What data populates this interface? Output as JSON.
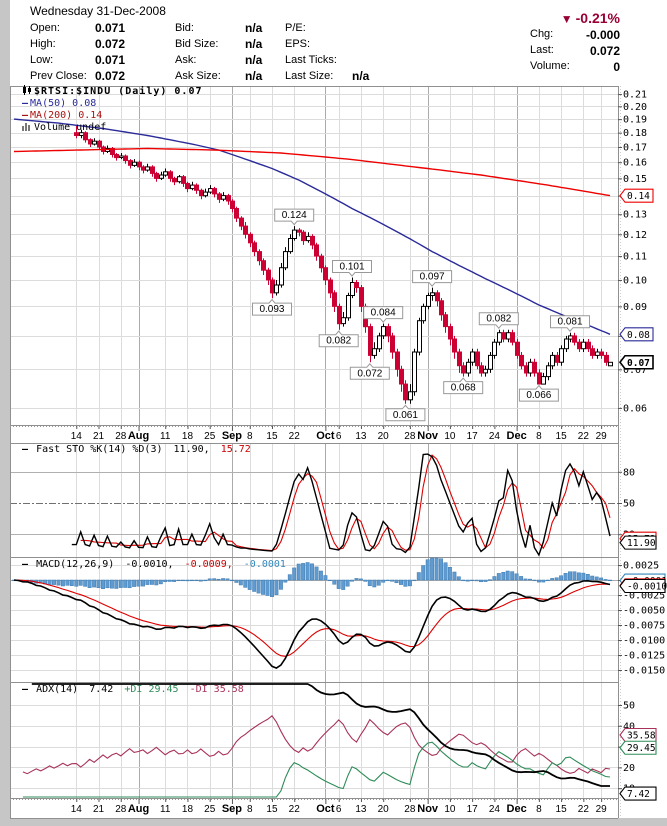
{
  "header": {
    "date_line": "Wednesday  31-Dec-2008",
    "rows_left": [
      {
        "label": "Open:",
        "value": "0.071"
      },
      {
        "label": "High:",
        "value": "0.072"
      },
      {
        "label": "Low:",
        "value": "0.071"
      },
      {
        "label": "Prev Close:",
        "value": "0.072"
      }
    ],
    "rows_mid": [
      {
        "label": "Bid:",
        "value": "n/a"
      },
      {
        "label": "Bid Size:",
        "value": "n/a"
      },
      {
        "label": "Ask:",
        "value": "n/a"
      },
      {
        "label": "Ask Size:",
        "value": "n/a"
      }
    ],
    "rows_right": [
      {
        "label": "P/E:",
        "value": ""
      },
      {
        "label": "EPS:",
        "value": ""
      },
      {
        "label": "Last Ticks:",
        "value": ""
      },
      {
        "label": "Last Size:",
        "value": "n/a"
      }
    ],
    "change": {
      "arrow": "▼",
      "percent": "-0.21%",
      "chg_label": "Chg:",
      "chg": "-0.000",
      "last_label": "Last:",
      "last": "0.072",
      "volume_label": "Volume:",
      "volume": "0"
    }
  },
  "legends": {
    "price": {
      "symbol": "$RTSI:$INDU (Daily) 0.07",
      "ma50": "MA(50) 0.08",
      "ma200": "MA(200) 0.14",
      "volume": "Volume undef"
    },
    "sto": {
      "name": "Fast STO %K(14) %D(3)",
      "k": "11.90,",
      "d": "15.72"
    },
    "macd": {
      "name": "MACD(12,26,9)",
      "macd": "-0.0010,",
      "signal": "-0.0009,",
      "hist": "-0.0001"
    },
    "adx": {
      "name": "ADX(14)",
      "adx": "7.42",
      "plus": "+DI 29.45",
      "minus": "-DI 35.58"
    }
  },
  "colors": {
    "down": "#cc0033",
    "up_fill": "#ffffff",
    "up_border": "#000000",
    "ma50": "#2a2a99",
    "ma200": "#ee0000",
    "sto_k": "#000000",
    "sto_d": "#dd0000",
    "macd_line": "#000000",
    "macd_signal": "#dd0000",
    "macd_hist": "#5f9bd0",
    "macd_hist_border": "#3d7bb0",
    "adx_line": "#000000",
    "plus_di": "#2e8b57",
    "minus_di": "#a83258",
    "accent_maroon": "#990033",
    "grid": "#dcdcdc",
    "grid_month": "#ababab",
    "border": "#909090",
    "page_gray": "#c6c6c6",
    "callout_border": "#999999"
  },
  "chart_data": {
    "type": "candlestick",
    "title": "$RTSI:$INDU (Daily)",
    "last_close": 0.07,
    "visible_start": 14,
    "candles": [
      [
        0.195,
        0.198,
        0.191,
        0.193
      ],
      [
        0.193,
        0.196,
        0.19,
        0.192
      ],
      [
        0.192,
        0.194,
        0.188,
        0.19
      ],
      [
        0.19,
        0.193,
        0.189,
        0.192
      ],
      [
        0.192,
        0.193,
        0.187,
        0.189
      ],
      [
        0.189,
        0.191,
        0.185,
        0.187
      ],
      [
        0.187,
        0.19,
        0.186,
        0.189
      ],
      [
        0.189,
        0.19,
        0.184,
        0.186
      ],
      [
        0.186,
        0.187,
        0.182,
        0.184
      ],
      [
        0.184,
        0.187,
        0.183,
        0.186
      ],
      [
        0.186,
        0.187,
        0.181,
        0.183
      ],
      [
        0.183,
        0.184,
        0.179,
        0.181
      ],
      [
        0.181,
        0.184,
        0.18,
        0.183
      ],
      [
        0.183,
        0.184,
        0.178,
        0.18
      ],
      [
        0.18,
        0.185,
        0.176,
        0.178
      ],
      [
        0.178,
        0.182,
        0.176,
        0.18
      ],
      [
        0.18,
        0.181,
        0.173,
        0.175
      ],
      [
        0.175,
        0.176,
        0.17,
        0.172
      ],
      [
        0.172,
        0.176,
        0.171,
        0.174
      ],
      [
        0.174,
        0.175,
        0.168,
        0.17
      ],
      [
        0.17,
        0.171,
        0.165,
        0.167
      ],
      [
        0.167,
        0.171,
        0.166,
        0.169
      ],
      [
        0.169,
        0.17,
        0.163,
        0.165
      ],
      [
        0.165,
        0.166,
        0.161,
        0.163
      ],
      [
        0.163,
        0.166,
        0.162,
        0.164
      ],
      [
        0.164,
        0.165,
        0.159,
        0.161
      ],
      [
        0.161,
        0.162,
        0.156,
        0.158
      ],
      [
        0.158,
        0.162,
        0.157,
        0.16
      ],
      [
        0.16,
        0.161,
        0.155,
        0.157
      ],
      [
        0.157,
        0.158,
        0.153,
        0.155
      ],
      [
        0.155,
        0.159,
        0.154,
        0.157
      ],
      [
        0.157,
        0.158,
        0.151,
        0.153
      ],
      [
        0.153,
        0.154,
        0.148,
        0.15
      ],
      [
        0.15,
        0.154,
        0.149,
        0.152
      ],
      [
        0.152,
        0.156,
        0.151,
        0.154
      ],
      [
        0.154,
        0.155,
        0.148,
        0.15
      ],
      [
        0.15,
        0.151,
        0.146,
        0.148
      ],
      [
        0.148,
        0.152,
        0.147,
        0.151
      ],
      [
        0.151,
        0.152,
        0.145,
        0.147
      ],
      [
        0.147,
        0.148,
        0.142,
        0.144
      ],
      [
        0.144,
        0.148,
        0.143,
        0.146
      ],
      [
        0.146,
        0.147,
        0.141,
        0.143
      ],
      [
        0.143,
        0.144,
        0.138,
        0.14
      ],
      [
        0.14,
        0.144,
        0.139,
        0.142
      ],
      [
        0.142,
        0.146,
        0.141,
        0.144
      ],
      [
        0.144,
        0.145,
        0.139,
        0.141
      ],
      [
        0.141,
        0.142,
        0.136,
        0.138
      ],
      [
        0.138,
        0.142,
        0.137,
        0.14
      ],
      [
        0.14,
        0.141,
        0.135,
        0.137
      ],
      [
        0.137,
        0.138,
        0.131,
        0.133
      ],
      [
        0.133,
        0.134,
        0.126,
        0.128
      ],
      [
        0.128,
        0.129,
        0.122,
        0.124
      ],
      [
        0.124,
        0.126,
        0.118,
        0.12
      ],
      [
        0.12,
        0.121,
        0.114,
        0.116
      ],
      [
        0.116,
        0.117,
        0.11,
        0.112
      ],
      [
        0.112,
        0.113,
        0.106,
        0.108
      ],
      [
        0.108,
        0.109,
        0.102,
        0.104
      ],
      [
        0.104,
        0.105,
        0.098,
        0.1
      ],
      [
        0.1,
        0.101,
        0.093,
        0.095
      ],
      [
        0.095,
        0.1,
        0.094,
        0.098
      ],
      [
        0.098,
        0.107,
        0.097,
        0.105
      ],
      [
        0.105,
        0.114,
        0.104,
        0.112
      ],
      [
        0.112,
        0.12,
        0.111,
        0.118
      ],
      [
        0.118,
        0.124,
        0.117,
        0.122
      ],
      [
        0.122,
        0.123,
        0.119,
        0.121
      ],
      [
        0.121,
        0.122,
        0.115,
        0.117
      ],
      [
        0.117,
        0.121,
        0.116,
        0.119
      ],
      [
        0.119,
        0.12,
        0.113,
        0.115
      ],
      [
        0.115,
        0.116,
        0.108,
        0.11
      ],
      [
        0.11,
        0.111,
        0.103,
        0.105
      ],
      [
        0.105,
        0.106,
        0.098,
        0.1
      ],
      [
        0.1,
        0.101,
        0.093,
        0.095
      ],
      [
        0.095,
        0.096,
        0.088,
        0.09
      ],
      [
        0.09,
        0.091,
        0.082,
        0.084
      ],
      [
        0.084,
        0.088,
        0.083,
        0.086
      ],
      [
        0.086,
        0.095,
        0.085,
        0.094
      ],
      [
        0.094,
        0.101,
        0.093,
        0.099
      ],
      [
        0.099,
        0.1,
        0.095,
        0.097
      ],
      [
        0.097,
        0.098,
        0.088,
        0.09
      ],
      [
        0.09,
        0.091,
        0.081,
        0.083
      ],
      [
        0.083,
        0.084,
        0.072,
        0.074
      ],
      [
        0.074,
        0.078,
        0.073,
        0.076
      ],
      [
        0.076,
        0.081,
        0.075,
        0.08
      ],
      [
        0.08,
        0.084,
        0.079,
        0.083
      ],
      [
        0.083,
        0.084,
        0.078,
        0.08
      ],
      [
        0.08,
        0.081,
        0.073,
        0.075
      ],
      [
        0.075,
        0.076,
        0.068,
        0.07
      ],
      [
        0.07,
        0.071,
        0.064,
        0.066
      ],
      [
        0.066,
        0.067,
        0.061,
        0.062
      ],
      [
        0.062,
        0.066,
        0.061,
        0.064
      ],
      [
        0.064,
        0.076,
        0.063,
        0.075
      ],
      [
        0.075,
        0.086,
        0.074,
        0.085
      ],
      [
        0.085,
        0.091,
        0.084,
        0.09
      ],
      [
        0.09,
        0.095,
        0.089,
        0.094
      ],
      [
        0.094,
        0.097,
        0.092,
        0.095
      ],
      [
        0.095,
        0.096,
        0.09,
        0.092
      ],
      [
        0.092,
        0.093,
        0.085,
        0.087
      ],
      [
        0.087,
        0.088,
        0.081,
        0.083
      ],
      [
        0.083,
        0.084,
        0.077,
        0.079
      ],
      [
        0.079,
        0.08,
        0.073,
        0.075
      ],
      [
        0.075,
        0.076,
        0.069,
        0.071
      ],
      [
        0.071,
        0.072,
        0.068,
        0.069
      ],
      [
        0.069,
        0.073,
        0.068,
        0.072
      ],
      [
        0.072,
        0.076,
        0.071,
        0.075
      ],
      [
        0.075,
        0.076,
        0.07,
        0.071
      ],
      [
        0.071,
        0.072,
        0.068,
        0.069
      ],
      [
        0.069,
        0.071,
        0.068,
        0.07
      ],
      [
        0.07,
        0.075,
        0.069,
        0.074
      ],
      [
        0.074,
        0.079,
        0.073,
        0.078
      ],
      [
        0.078,
        0.082,
        0.077,
        0.081
      ],
      [
        0.081,
        0.082,
        0.078,
        0.079
      ],
      [
        0.079,
        0.082,
        0.078,
        0.081
      ],
      [
        0.081,
        0.082,
        0.077,
        0.078
      ],
      [
        0.078,
        0.079,
        0.073,
        0.074
      ],
      [
        0.074,
        0.075,
        0.07,
        0.071
      ],
      [
        0.071,
        0.072,
        0.068,
        0.069
      ],
      [
        0.069,
        0.073,
        0.068,
        0.072
      ],
      [
        0.072,
        0.073,
        0.068,
        0.069
      ],
      [
        0.069,
        0.07,
        0.066,
        0.066
      ],
      [
        0.066,
        0.069,
        0.066,
        0.068
      ],
      [
        0.068,
        0.072,
        0.067,
        0.071
      ],
      [
        0.071,
        0.075,
        0.07,
        0.074
      ],
      [
        0.074,
        0.075,
        0.071,
        0.072
      ],
      [
        0.072,
        0.077,
        0.071,
        0.076
      ],
      [
        0.076,
        0.08,
        0.075,
        0.079
      ],
      [
        0.079,
        0.081,
        0.078,
        0.08
      ],
      [
        0.08,
        0.081,
        0.077,
        0.078
      ],
      [
        0.078,
        0.079,
        0.075,
        0.076
      ],
      [
        0.076,
        0.079,
        0.075,
        0.078
      ],
      [
        0.078,
        0.079,
        0.075,
        0.076
      ],
      [
        0.076,
        0.077,
        0.073,
        0.074
      ],
      [
        0.074,
        0.076,
        0.073,
        0.075
      ],
      [
        0.075,
        0.076,
        0.073,
        0.074
      ],
      [
        0.074,
        0.075,
        0.071,
        0.072
      ],
      [
        0.071,
        0.072,
        0.071,
        0.072
      ]
    ],
    "x_ticks": [
      {
        "i": 14,
        "label": "14",
        "month": false
      },
      {
        "i": 19,
        "label": "21",
        "month": false
      },
      {
        "i": 24,
        "label": "28",
        "month": false
      },
      {
        "i": 28,
        "label": "Aug",
        "month": true
      },
      {
        "i": 34,
        "label": "11",
        "month": false
      },
      {
        "i": 39,
        "label": "18",
        "month": false
      },
      {
        "i": 44,
        "label": "25",
        "month": false
      },
      {
        "i": 49,
        "label": "Sep",
        "month": true
      },
      {
        "i": 53,
        "label": "8",
        "month": false
      },
      {
        "i": 58,
        "label": "15",
        "month": false
      },
      {
        "i": 63,
        "label": "22",
        "month": false
      },
      {
        "i": 70,
        "label": "Oct",
        "month": true
      },
      {
        "i": 73,
        "label": "6",
        "month": false
      },
      {
        "i": 78,
        "label": "13",
        "month": false
      },
      {
        "i": 83,
        "label": "20",
        "month": false
      },
      {
        "i": 89,
        "label": "28",
        "month": false
      },
      {
        "i": 93,
        "label": "Nov",
        "month": true
      },
      {
        "i": 98,
        "label": "10",
        "month": false
      },
      {
        "i": 103,
        "label": "17",
        "month": false
      },
      {
        "i": 108,
        "label": "24",
        "month": false
      },
      {
        "i": 113,
        "label": "Dec",
        "month": true
      },
      {
        "i": 118,
        "label": "8",
        "month": false
      },
      {
        "i": 123,
        "label": "15",
        "month": false
      },
      {
        "i": 128,
        "label": "22",
        "month": false
      },
      {
        "i": 132,
        "label": "29",
        "month": false
      }
    ],
    "price_panel": {
      "scale": "log",
      "axis_labels": [
        0.21,
        0.2,
        0.19,
        0.18,
        0.17,
        0.16,
        0.15,
        0.14,
        0.13,
        0.12,
        0.11,
        0.1,
        0.09,
        0.08,
        0.07,
        0.06
      ],
      "ma50_points": [
        [
          0,
          0.19
        ],
        [
          10,
          0.187
        ],
        [
          20,
          0.183
        ],
        [
          30,
          0.178
        ],
        [
          40,
          0.172
        ],
        [
          46,
          0.168
        ],
        [
          52,
          0.162
        ],
        [
          58,
          0.156
        ],
        [
          64,
          0.149
        ],
        [
          70,
          0.141
        ],
        [
          76,
          0.133
        ],
        [
          82,
          0.126
        ],
        [
          88,
          0.119
        ],
        [
          94,
          0.112
        ],
        [
          100,
          0.106
        ],
        [
          106,
          0.1005
        ],
        [
          112,
          0.0955
        ],
        [
          118,
          0.0905
        ],
        [
          124,
          0.0865
        ],
        [
          129,
          0.0835
        ],
        [
          134,
          0.0805
        ]
      ],
      "ma200_points": [
        [
          0,
          0.167
        ],
        [
          15,
          0.168
        ],
        [
          30,
          0.169
        ],
        [
          45,
          0.168
        ],
        [
          60,
          0.166
        ],
        [
          75,
          0.162
        ],
        [
          90,
          0.157
        ],
        [
          105,
          0.152
        ],
        [
          120,
          0.146
        ],
        [
          134,
          0.14
        ]
      ],
      "annotations": [
        {
          "i": 58,
          "text": "0.093",
          "side": "below"
        },
        {
          "i": 63,
          "text": "0.124",
          "side": "above"
        },
        {
          "i": 73,
          "text": "0.082",
          "side": "below"
        },
        {
          "i": 76,
          "text": "0.101",
          "side": "above"
        },
        {
          "i": 80,
          "text": "0.072",
          "side": "below"
        },
        {
          "i": 83,
          "text": "0.084",
          "side": "above"
        },
        {
          "i": 88,
          "text": "0.061",
          "side": "below"
        },
        {
          "i": 94,
          "text": "0.097",
          "side": "above"
        },
        {
          "i": 101,
          "text": "0.068",
          "side": "below"
        },
        {
          "i": 109,
          "text": "0.082",
          "side": "above"
        },
        {
          "i": 118,
          "text": "0.066",
          "side": "below"
        },
        {
          "i": 125,
          "text": "0.081",
          "side": "above"
        }
      ],
      "boxes": [
        {
          "label": "0.14",
          "color": "#ee0000",
          "value": 0.14,
          "bold": false
        },
        {
          "label": "0.08",
          "color": "#2a2a99",
          "value": 0.0805,
          "bold": false
        },
        {
          "label": "0.07",
          "color": "#000000",
          "value": 0.072,
          "bold": true
        }
      ]
    },
    "sto_panel": {
      "gridlines": [
        80,
        50,
        20
      ],
      "axis_labels": [
        80,
        50,
        20
      ],
      "boxes": [
        {
          "label": "15.72",
          "color": "#dd0000",
          "value": 15.72,
          "bold": false
        },
        {
          "label": "11.90",
          "color": "#000000",
          "value": 11.9,
          "bold": false
        }
      ]
    },
    "macd_panel": {
      "gridlines": [
        0.0025,
        0,
        -0.0025,
        -0.005,
        -0.0075,
        -0.01,
        -0.0125,
        -0.015
      ],
      "boxes": [
        {
          "label": "-0.0001",
          "color": "#3388bb",
          "value": -0.0001,
          "bold": false
        },
        {
          "label": "-0.0009",
          "color": "#dd0000",
          "value": -0.0009,
          "bold": false
        },
        {
          "label": "-0.0010",
          "color": "#000000",
          "value": -0.001,
          "bold": false
        }
      ]
    },
    "adx_panel": {
      "gridlines": [
        50,
        40,
        30,
        20,
        10
      ],
      "boxes": [
        {
          "label": "35.58",
          "color": "#a83258",
          "value": 35.58,
          "bold": false
        },
        {
          "label": "29.45",
          "color": "#2e8b57",
          "value": 29.45,
          "bold": false
        },
        {
          "label": "7.42",
          "color": "#000000",
          "value": 7.42,
          "bold": false
        }
      ]
    }
  }
}
